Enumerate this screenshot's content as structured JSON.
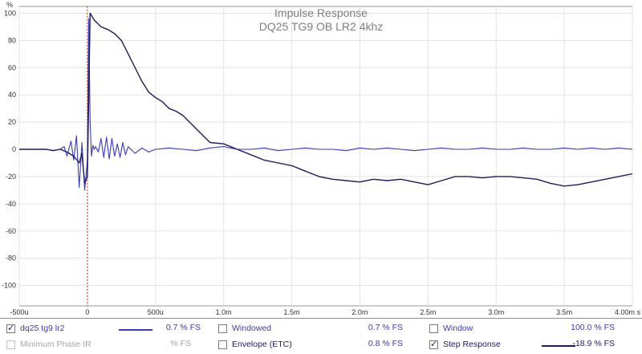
{
  "chart_data": {
    "type": "line",
    "title": "Impulse Response",
    "subtitle": "DQ25 TG9 OB LR2 4khz",
    "ylabel": "%",
    "xlabel": "s",
    "xlim": [
      -0.0005,
      0.004
    ],
    "ylim": [
      -115,
      105
    ],
    "x_tick_labels": [
      "-500u",
      "0",
      "500u",
      "1.0m",
      "1.5m",
      "2.0m",
      "2.5m",
      "3.0m",
      "3.5m",
      "4.00m s"
    ],
    "x_ticks": [
      -0.0005,
      0,
      0.0005,
      0.001,
      0.0015,
      0.002,
      0.0025,
      0.003,
      0.0035,
      0.004
    ],
    "y_tick_labels": [
      "100",
      "80",
      "60",
      "40",
      "20",
      "0",
      "-20",
      "-40",
      "-60",
      "-80",
      "-100"
    ],
    "y_ticks": [
      100,
      80,
      60,
      40,
      20,
      0,
      -20,
      -40,
      -60,
      -80,
      -100
    ],
    "grid": true,
    "marker_x": 0,
    "series": [
      {
        "color": "#3b3bb8",
        "x": [
          -0.0005,
          -0.0004,
          -0.0003,
          -0.00025,
          -0.0002,
          -0.00017,
          -0.00015,
          -0.00012,
          -0.0001,
          -8e-05,
          -6e-05,
          -4e-05,
          -2e-05,
          0,
          1e-05,
          2e-05,
          3e-05,
          4e-05,
          5e-05,
          6e-05,
          8e-05,
          0.0001,
          0.00012,
          0.00014,
          0.00016,
          0.00018,
          0.0002,
          0.00022,
          0.00024,
          0.00026,
          0.00028,
          0.0003,
          0.00035,
          0.0004,
          0.00045,
          0.0005,
          0.0006,
          0.0007,
          0.0008,
          0.0009,
          0.001,
          0.0011,
          0.0012,
          0.0013,
          0.0014,
          0.0015,
          0.0016,
          0.0017,
          0.0018,
          0.0019,
          0.002,
          0.0021,
          0.0022,
          0.0023,
          0.0024,
          0.0025,
          0.0026,
          0.0027,
          0.0028,
          0.0029,
          0.003,
          0.0031,
          0.0032,
          0.0033,
          0.0034,
          0.0035,
          0.0036,
          0.0037,
          0.0038,
          0.0039,
          0.004
        ],
        "y": [
          0,
          0,
          0,
          -1,
          0,
          2,
          -5,
          6,
          -8,
          10,
          -28,
          5,
          -30,
          -8,
          96,
          20,
          -5,
          3,
          0,
          2,
          -2,
          8,
          -6,
          9,
          -7,
          8,
          -5,
          4,
          -6,
          5,
          -4,
          2,
          -3,
          1,
          -2,
          0,
          1,
          0,
          -1,
          1,
          2,
          0,
          0,
          1,
          -1,
          0,
          1,
          0,
          0,
          -1,
          1,
          0,
          1,
          0,
          -1,
          0,
          1,
          0,
          0,
          1,
          0,
          0,
          1,
          0,
          0,
          1,
          0,
          1,
          0,
          1,
          0
        ]
      },
      {
        "color": "#1c1c5e",
        "x": [
          -0.0005,
          -0.0004,
          -0.0003,
          -0.00025,
          -0.0002,
          -0.00015,
          -0.0001,
          -6e-05,
          -4e-05,
          -2e-05,
          0,
          2e-05,
          5e-05,
          0.0001,
          0.00015,
          0.0002,
          0.00025,
          0.0003,
          0.00035,
          0.0004,
          0.00045,
          0.0005,
          0.00055,
          0.0006,
          0.00065,
          0.0007,
          0.00075,
          0.0008,
          0.0009,
          0.001,
          0.0011,
          0.0012,
          0.0013,
          0.0014,
          0.0015,
          0.0016,
          0.0017,
          0.0018,
          0.0019,
          0.002,
          0.0021,
          0.0022,
          0.0023,
          0.0024,
          0.0025,
          0.0026,
          0.0027,
          0.0028,
          0.0029,
          0.003,
          0.0031,
          0.0032,
          0.0033,
          0.0034,
          0.0035,
          0.0036,
          0.0037,
          0.0038,
          0.0039,
          0.004
        ],
        "y": [
          0,
          0,
          0,
          -1,
          0,
          -2,
          -5,
          -10,
          -3,
          -25,
          -20,
          100,
          95,
          90,
          88,
          85,
          80,
          70,
          60,
          50,
          42,
          38,
          35,
          30,
          28,
          25,
          20,
          15,
          5,
          4,
          0,
          -4,
          -8,
          -10,
          -12,
          -16,
          -20,
          -22,
          -23,
          -24,
          -22,
          -23,
          -22,
          -24,
          -26,
          -23,
          -20,
          -20,
          -21,
          -20,
          -20,
          -21,
          -22,
          -25,
          -27,
          -26,
          -24,
          -22,
          -20,
          -18
        ]
      }
    ]
  },
  "legend": {
    "row1": {
      "col1": {
        "label": "dq25 tg9 lr2",
        "value": "0.7 % FS",
        "checked": true
      },
      "col2": {
        "label": "Windowed",
        "value": "0.7 % FS",
        "checked": false
      },
      "col3": {
        "label": "Window",
        "value": "100.0 % FS",
        "checked": false
      }
    },
    "row2": {
      "col1": {
        "label": "Minimum Phase IR",
        "value": "% FS",
        "checked": false
      },
      "col2": {
        "label": "Envelope (ETC)",
        "value": "0.8 % FS",
        "checked": false
      },
      "col3": {
        "label": "Step Response",
        "value": "-18.9 % FS",
        "checked": true
      }
    }
  }
}
